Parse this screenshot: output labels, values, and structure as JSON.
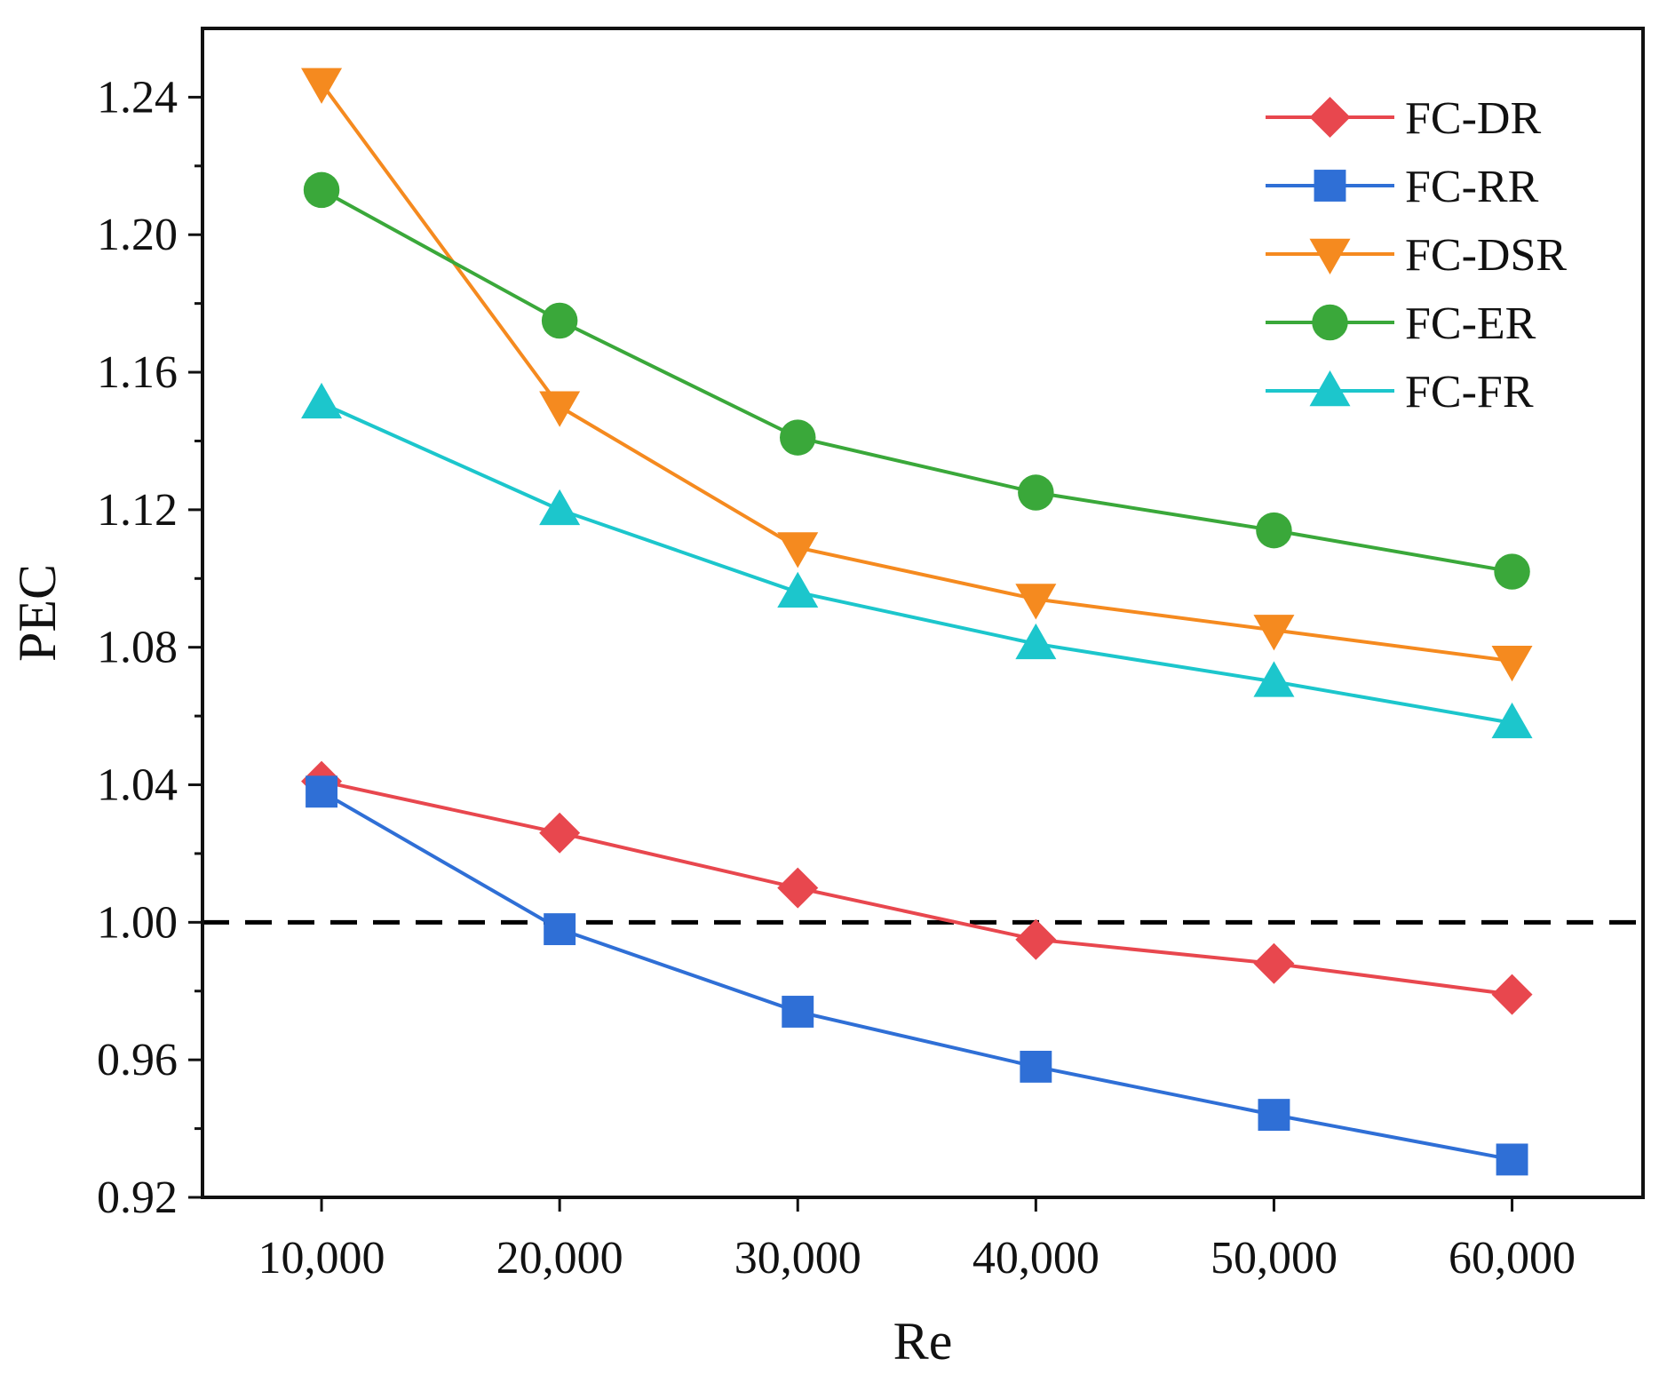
{
  "chart_data": {
    "type": "line",
    "title": "",
    "xlabel": "Re",
    "ylabel": "PEC",
    "x": [
      10000,
      20000,
      30000,
      40000,
      50000,
      60000
    ],
    "x_tick_labels": [
      "10,000",
      "20,000",
      "30,000",
      "40,000",
      "50,000",
      "60,000"
    ],
    "xlim": [
      5000,
      65500
    ],
    "ylim": [
      0.92,
      1.26
    ],
    "y_ticks": [
      0.92,
      0.96,
      1.0,
      1.04,
      1.08,
      1.12,
      1.16,
      1.2,
      1.24
    ],
    "y_tick_labels": [
      "0.92",
      "0.96",
      "1.00",
      "1.04",
      "1.08",
      "1.12",
      "1.16",
      "1.20",
      "1.24"
    ],
    "reference_line": {
      "y": 1.0,
      "style": "dashed",
      "color": "#000000"
    },
    "legend_position": "top-right",
    "grid": false,
    "series": [
      {
        "name": "FC-DR",
        "marker": "diamond",
        "color": "#e8474e",
        "values": [
          1.041,
          1.026,
          1.01,
          0.995,
          0.988,
          0.979
        ]
      },
      {
        "name": "FC-RR",
        "marker": "square",
        "color": "#2f6fd6",
        "values": [
          1.038,
          0.998,
          0.974,
          0.958,
          0.944,
          0.931
        ]
      },
      {
        "name": "FC-DSR",
        "marker": "triangle-down",
        "color": "#f58a1f",
        "values": [
          1.244,
          1.15,
          1.109,
          1.094,
          1.085,
          1.076
        ]
      },
      {
        "name": "FC-ER",
        "marker": "circle",
        "color": "#3aa83a",
        "values": [
          1.213,
          1.175,
          1.141,
          1.125,
          1.114,
          1.102
        ]
      },
      {
        "name": "FC-FR",
        "marker": "triangle-up",
        "color": "#1cc6cc",
        "values": [
          1.151,
          1.12,
          1.096,
          1.081,
          1.07,
          1.058
        ]
      }
    ]
  }
}
